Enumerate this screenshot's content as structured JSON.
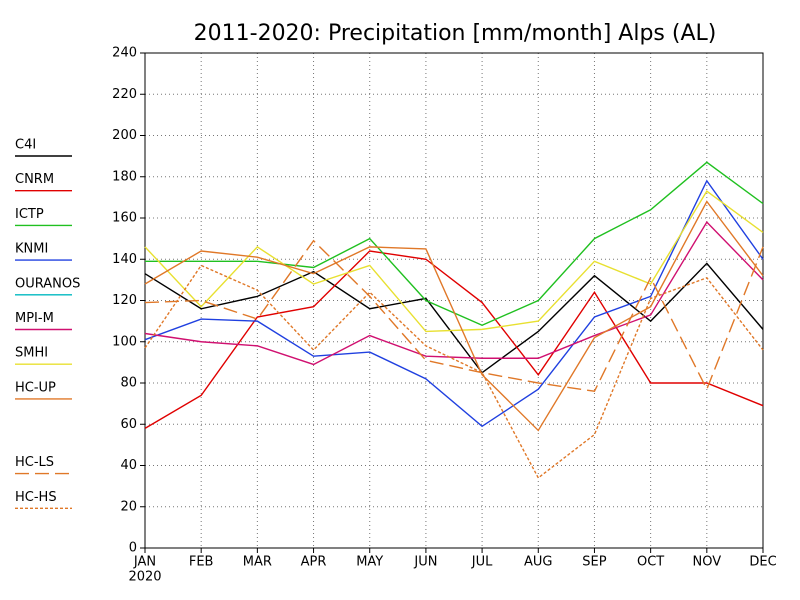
{
  "chart_data": {
    "type": "line",
    "title": "2011-2020: Precipitation [mm/month] Alps (AL)",
    "categories": [
      "JAN",
      "FEB",
      "MAR",
      "APR",
      "MAY",
      "JUN",
      "JUL",
      "AUG",
      "SEP",
      "OCT",
      "NOV",
      "DEC"
    ],
    "x_year": "2020",
    "ylim": [
      0,
      240
    ],
    "yticks": [
      0,
      20,
      40,
      60,
      80,
      100,
      120,
      140,
      160,
      180,
      200,
      220,
      240
    ],
    "grid": true,
    "legend": "left",
    "series": [
      {
        "name": "C4I",
        "color": "#000000",
        "dash": "solid",
        "values": [
          133,
          116,
          122,
          134,
          116,
          121,
          85,
          105,
          132,
          110,
          138,
          106
        ]
      },
      {
        "name": "CNRM",
        "color": "#e00000",
        "dash": "solid",
        "values": [
          58,
          74,
          112,
          117,
          144,
          140,
          119,
          84,
          124,
          80,
          80,
          69
        ]
      },
      {
        "name": "ICTP",
        "color": "#20c020",
        "dash": "solid",
        "values": [
          139,
          139,
          139,
          136,
          150,
          120,
          108,
          120,
          150,
          164,
          187,
          167
        ]
      },
      {
        "name": "KNMI",
        "color": "#2040e0",
        "dash": "solid",
        "values": [
          101,
          111,
          110,
          93,
          95,
          82,
          59,
          77,
          112,
          122,
          178,
          140
        ]
      },
      {
        "name": "OURANOS",
        "color": "#00b8c0",
        "dash": "solid",
        "values": [
          null,
          null,
          null,
          null,
          null,
          null,
          null,
          null,
          null,
          null,
          null,
          null
        ]
      },
      {
        "name": "MPI-M",
        "color": "#d01070",
        "dash": "solid",
        "values": [
          104,
          100,
          98,
          89,
          103,
          93,
          92,
          92,
          103,
          113,
          158,
          130
        ]
      },
      {
        "name": "SMHI",
        "color": "#e8e030",
        "dash": "solid",
        "values": [
          146,
          117,
          146,
          128,
          137,
          105,
          106,
          110,
          139,
          128,
          173,
          153
        ]
      },
      {
        "name": "HC-UP",
        "color": "#e07828",
        "dash": "solid",
        "values": [
          128,
          144,
          141,
          133,
          146,
          145,
          84,
          57,
          102,
          117,
          168,
          132
        ]
      },
      {
        "name": "HC-LS",
        "color": "#e07828",
        "dash": "long",
        "values": [
          119,
          120,
          111,
          149,
          122,
          91,
          85,
          80,
          76,
          131,
          77,
          146
        ]
      },
      {
        "name": "HC-HS",
        "color": "#e07828",
        "dash": "short",
        "values": [
          97,
          137,
          125,
          96,
          124,
          98,
          85,
          34,
          55,
          121,
          131,
          96
        ]
      }
    ]
  }
}
